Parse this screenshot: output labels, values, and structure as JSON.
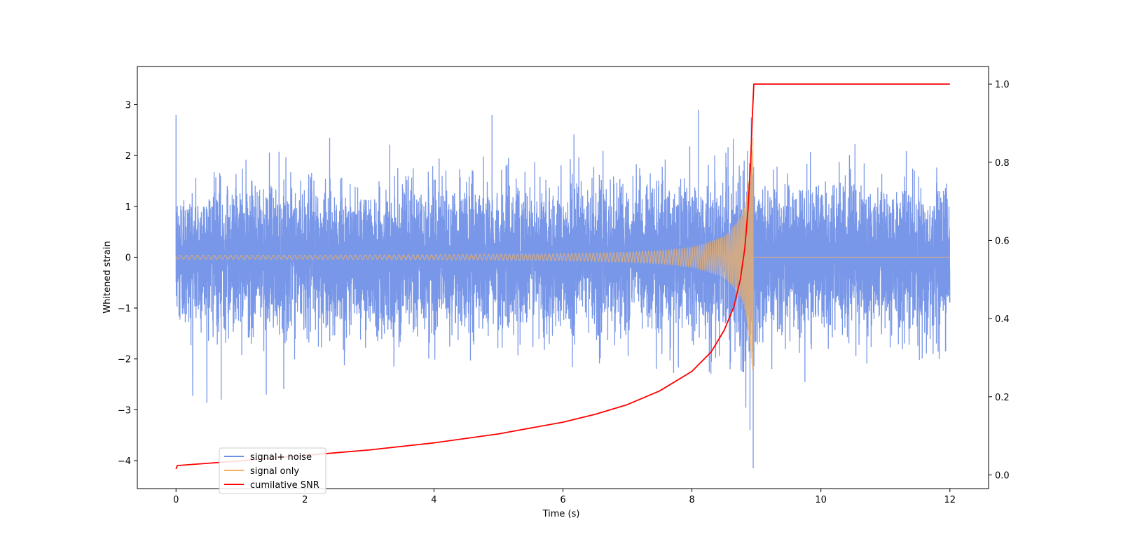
{
  "chart_data": {
    "type": "line",
    "title": "",
    "xlabel": "Time (s)",
    "ylabel": "Whitened strain",
    "y2label": "",
    "xlim": [
      -0.6,
      12.6
    ],
    "ylim": [
      -4.55,
      3.75
    ],
    "y2lim": [
      -0.035,
      1.045
    ],
    "grid": false,
    "legend_position": "lower-left",
    "x_ticks": [
      {
        "value": 0,
        "label": "0"
      },
      {
        "value": 2,
        "label": "2"
      },
      {
        "value": 4,
        "label": "4"
      },
      {
        "value": 6,
        "label": "6"
      },
      {
        "value": 8,
        "label": "8"
      },
      {
        "value": 10,
        "label": "10"
      },
      {
        "value": 12,
        "label": "12"
      }
    ],
    "y_ticks": [
      {
        "value": 3,
        "label": "3"
      },
      {
        "value": 2,
        "label": "2"
      },
      {
        "value": 1,
        "label": "1"
      },
      {
        "value": 0,
        "label": "0"
      },
      {
        "value": -1,
        "label": "−1"
      },
      {
        "value": -2,
        "label": "−2"
      },
      {
        "value": -3,
        "label": "−3"
      },
      {
        "value": -4,
        "label": "−4"
      }
    ],
    "y2_ticks": [
      {
        "value": 1.0,
        "label": "1.0"
      },
      {
        "value": 0.8,
        "label": "0.8"
      },
      {
        "value": 0.6,
        "label": "0.6"
      },
      {
        "value": 0.4,
        "label": "0.4"
      },
      {
        "value": 0.2,
        "label": "0.2"
      },
      {
        "value": 0.0,
        "label": "0.0"
      }
    ],
    "series": [
      {
        "name": "signal+ noise",
        "color": "#6e8ee6",
        "axis": "left",
        "x_range": [
          0,
          12
        ],
        "noise_sigma": 0.68,
        "notable_peaks": [
          {
            "x": 0.0,
            "y": 2.8
          },
          {
            "x": 0.7,
            "y": -2.8
          },
          {
            "x": 1.4,
            "y": -2.7
          },
          {
            "x": 4.9,
            "y": 2.8
          },
          {
            "x": 8.1,
            "y": 2.9
          },
          {
            "x": 8.9,
            "y": -3.4
          },
          {
            "x": 8.92,
            "y": 2.75
          },
          {
            "x": 8.95,
            "y": -4.15
          }
        ]
      },
      {
        "name": "signal only",
        "color": "#f5b25c",
        "axis": "left",
        "x_range": [
          0,
          12
        ],
        "merger_time": 8.95,
        "envelope": [
          {
            "x": 0.0,
            "a": 0.04
          },
          {
            "x": 2.0,
            "a": 0.04
          },
          {
            "x": 4.0,
            "a": 0.05
          },
          {
            "x": 6.0,
            "a": 0.07
          },
          {
            "x": 7.0,
            "a": 0.1
          },
          {
            "x": 7.5,
            "a": 0.13
          },
          {
            "x": 8.0,
            "a": 0.2
          },
          {
            "x": 8.5,
            "a": 0.4
          },
          {
            "x": 8.8,
            "a": 0.9
          },
          {
            "x": 8.95,
            "a": 2.4
          }
        ],
        "after_merger_value": 0
      },
      {
        "name": "cumilative SNR",
        "color": "#ff0000",
        "axis": "right",
        "points": [
          {
            "x": 0.0,
            "y": 0.015
          },
          {
            "x": 0.02,
            "y": 0.024
          },
          {
            "x": 1.0,
            "y": 0.036
          },
          {
            "x": 2.0,
            "y": 0.05
          },
          {
            "x": 3.0,
            "y": 0.064
          },
          {
            "x": 4.0,
            "y": 0.082
          },
          {
            "x": 5.0,
            "y": 0.105
          },
          {
            "x": 6.0,
            "y": 0.135
          },
          {
            "x": 6.5,
            "y": 0.155
          },
          {
            "x": 7.0,
            "y": 0.18
          },
          {
            "x": 7.5,
            "y": 0.215
          },
          {
            "x": 8.0,
            "y": 0.265
          },
          {
            "x": 8.3,
            "y": 0.315
          },
          {
            "x": 8.5,
            "y": 0.37
          },
          {
            "x": 8.65,
            "y": 0.43
          },
          {
            "x": 8.75,
            "y": 0.5
          },
          {
            "x": 8.82,
            "y": 0.58
          },
          {
            "x": 8.87,
            "y": 0.68
          },
          {
            "x": 8.91,
            "y": 0.8
          },
          {
            "x": 8.94,
            "y": 0.93
          },
          {
            "x": 8.96,
            "y": 1.0
          },
          {
            "x": 12.0,
            "y": 1.0
          }
        ]
      }
    ]
  }
}
